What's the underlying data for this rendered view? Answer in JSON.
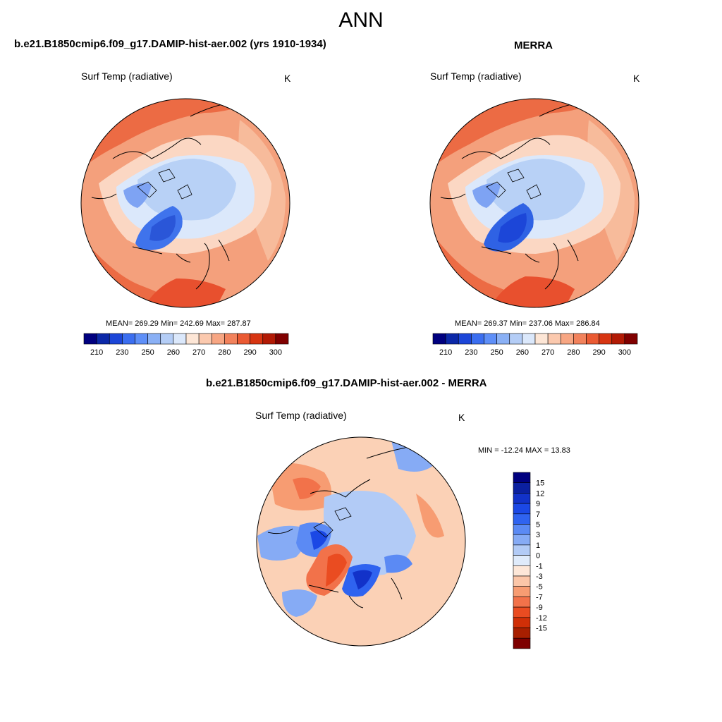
{
  "title": "ANN",
  "panels": [
    {
      "heading": "b.e21.B1850cmip6.f09_g17.DAMIP-hist-aer.002 (yrs 1910-1934)",
      "variable": "Surf Temp (radiative)",
      "unit": "K",
      "stats": "MEAN= 269.29  Min= 242.69  Max= 287.87"
    },
    {
      "heading": "MERRA",
      "variable": "Surf Temp (radiative)",
      "unit": "K",
      "stats": "MEAN= 269.37  Min= 237.06  Max= 286.84"
    },
    {
      "heading": "b.e21.B1850cmip6.f09_g17.DAMIP-hist-aer.002 - MERRA",
      "variable": "Surf Temp (radiative)",
      "unit": "K",
      "stats": "MIN = -12.24 MAX =  13.83"
    }
  ],
  "colorbar_abs": {
    "colors": [
      "#00007f",
      "#0b28a8",
      "#1c46d8",
      "#3b6ef0",
      "#5e8ff8",
      "#8ab0f5",
      "#b4cdf6",
      "#dbe8fb",
      "#fde6d6",
      "#fbc9ae",
      "#f7a683",
      "#f2825c",
      "#ea5a33",
      "#d73512",
      "#b21a05",
      "#800000"
    ],
    "tick_labels": [
      "210",
      "230",
      "250",
      "260",
      "270",
      "280",
      "290",
      "300"
    ]
  },
  "colorbar_diff": {
    "colors": [
      "#00007f",
      "#0b20a0",
      "#1232c9",
      "#1b48e5",
      "#2f63f0",
      "#5b8af4",
      "#86abf5",
      "#b2cbf6",
      "#dfebfb",
      "#fde7d8",
      "#fbc6a8",
      "#f79c72",
      "#f2724a",
      "#ea4c21",
      "#d02f07",
      "#a81f00",
      "#7e0000"
    ],
    "tick_labels": [
      "15",
      "12",
      "9",
      "7",
      "5",
      "3",
      "1",
      "0",
      "-1",
      "-3",
      "-5",
      "-7",
      "-9",
      "-12",
      "-15"
    ]
  }
}
